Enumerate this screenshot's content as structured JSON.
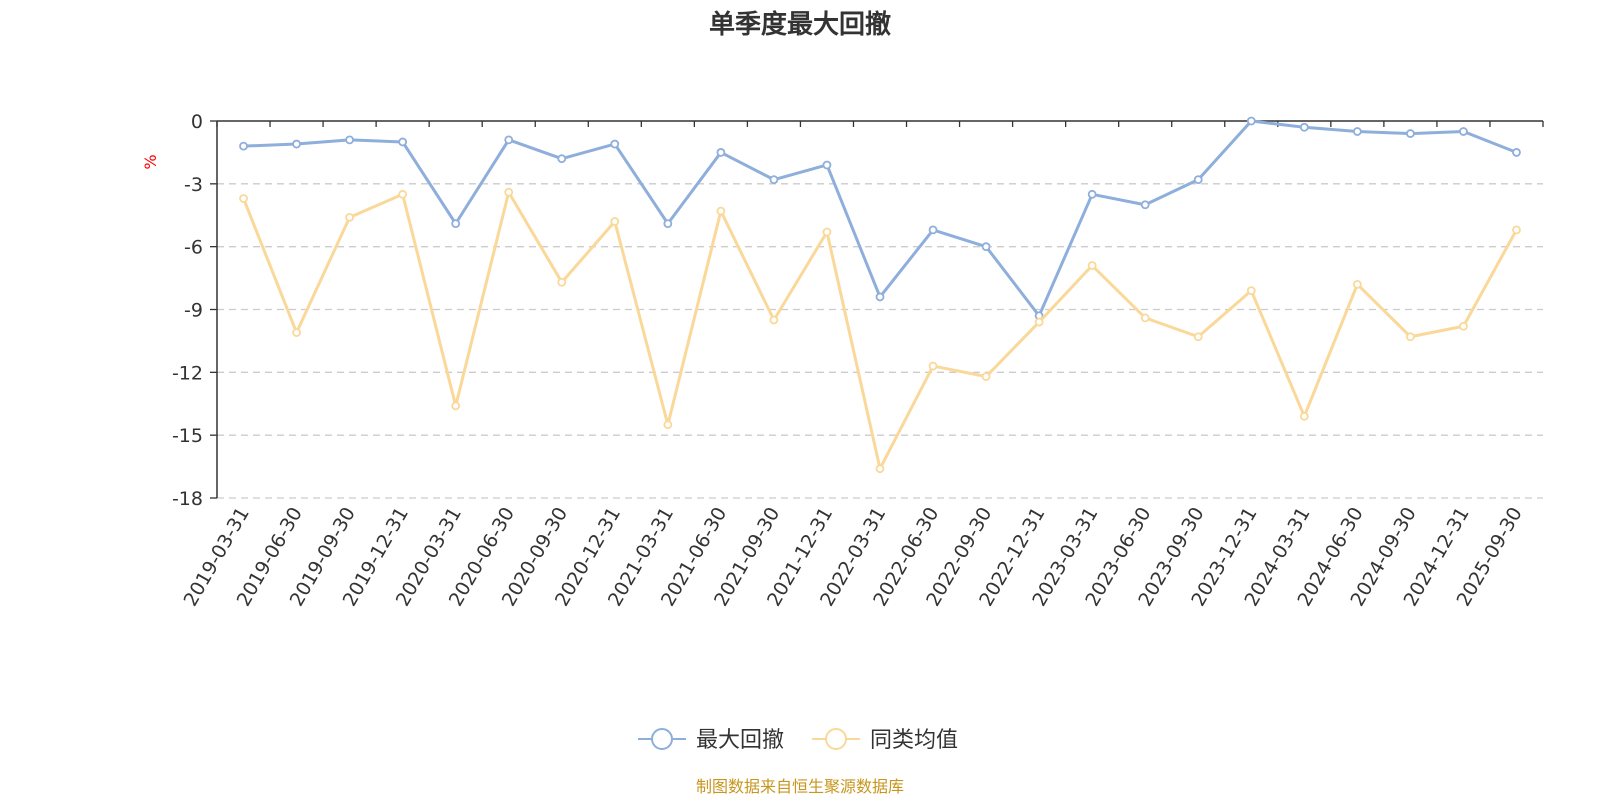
{
  "chart_data": {
    "type": "line",
    "title": "单季度最大回撤",
    "ylabel": "%",
    "xlabel": "",
    "ylim": [
      -18,
      0
    ],
    "yticks": [
      0,
      -3,
      -6,
      -9,
      -12,
      -15,
      -18
    ],
    "grid": true,
    "legend_position": "bottom-center",
    "categories": [
      "2019-03-31",
      "2019-06-30",
      "2019-09-30",
      "2019-12-31",
      "2020-03-31",
      "2020-06-30",
      "2020-09-30",
      "2020-12-31",
      "2021-03-31",
      "2021-06-30",
      "2021-09-30",
      "2021-12-31",
      "2022-03-31",
      "2022-06-30",
      "2022-09-30",
      "2022-12-31",
      "2023-03-31",
      "2023-06-30",
      "2023-09-30",
      "2023-12-31",
      "2024-03-31",
      "2024-06-30",
      "2024-09-30",
      "2024-12-31",
      "2025-09-30"
    ],
    "series": [
      {
        "name": "最大回撤",
        "color": "#8eaedb",
        "values": [
          -1.2,
          -1.1,
          -0.9,
          -1.0,
          -4.9,
          -0.9,
          -1.8,
          -1.1,
          -4.9,
          -1.5,
          -2.8,
          -2.1,
          -8.4,
          -5.2,
          -6.0,
          -9.3,
          -3.5,
          -4.0,
          -2.8,
          0.0,
          -0.3,
          -0.5,
          -0.6,
          -0.5,
          -1.5
        ]
      },
      {
        "name": "同类均值",
        "color": "#fad899",
        "values": [
          -3.7,
          -10.1,
          -4.6,
          -3.5,
          -13.6,
          -3.4,
          -7.7,
          -4.8,
          -14.5,
          -4.3,
          -9.5,
          -5.3,
          -16.6,
          -11.7,
          -12.2,
          -9.6,
          -6.9,
          -9.4,
          -10.3,
          -8.1,
          -14.1,
          -7.8,
          -10.3,
          -9.8,
          -5.2
        ]
      }
    ],
    "source": "制图数据来自恒生聚源数据库"
  }
}
